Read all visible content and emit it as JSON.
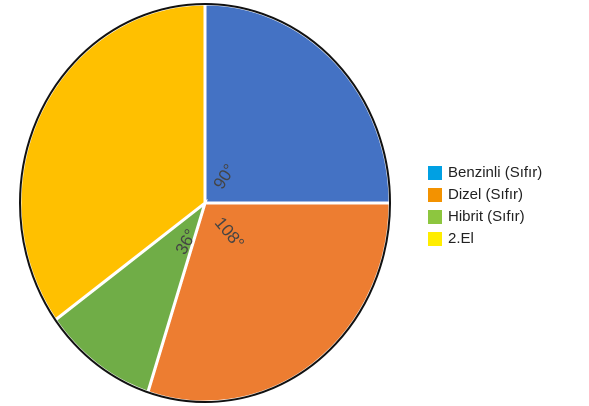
{
  "chart_data": {
    "type": "pie",
    "categories": [
      "Benzinli (Sıfır)",
      "Dizel (Sıfır)",
      "Hibrit (Sıfır)",
      "2.El"
    ],
    "values": [
      90,
      108,
      36,
      126
    ],
    "value_labels": [
      "90°",
      "108°",
      "36°",
      null
    ],
    "colors": [
      "#4472c4",
      "#ed7d31",
      "#70ad47",
      "#ffc000"
    ],
    "legend_colors": [
      "#00a0e3",
      "#f39200",
      "#8dc63f",
      "#ffed00"
    ],
    "legend": "right"
  }
}
